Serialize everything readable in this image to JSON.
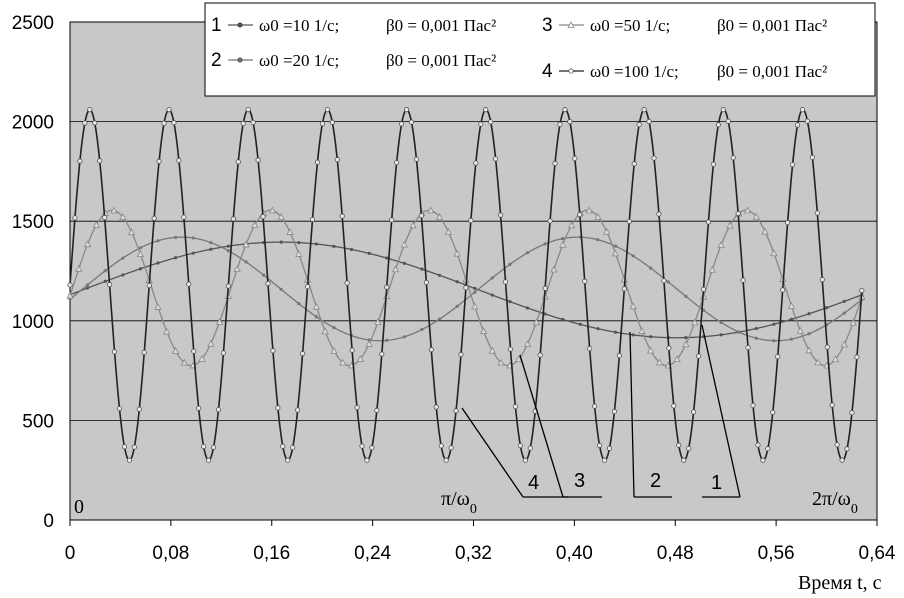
{
  "chart_data": {
    "type": "line",
    "xlabel": "Время  t, с",
    "xlim": [
      0,
      0.64
    ],
    "ylim": [
      0,
      2500
    ],
    "x_ticks": [
      "0",
      "0,08",
      "0,16",
      "0,24",
      "0,32",
      "0,40",
      "0,48",
      "0,56",
      "0,64"
    ],
    "y_ticks": [
      "0",
      "500",
      "1000",
      "1500",
      "2000",
      "2500"
    ],
    "grid": "horizontal",
    "legend_position": "top-right",
    "series": [
      {
        "name": "1",
        "omega_label": "ω0 =10 1/с;",
        "beta_label": "β0 = 0,001 Пас²",
        "omega": 10,
        "amplitude": 240,
        "mean": 1155,
        "phase": -0.1,
        "marker": "dot",
        "color": "#555555"
      },
      {
        "name": "2",
        "omega_label": "ω0 =20 1/с;",
        "beta_label": "β0 = 0,001 Пас²",
        "omega": 20,
        "amplitude": 260,
        "mean": 1160,
        "phase": -0.2,
        "marker": "dot",
        "color": "#777777"
      },
      {
        "name": "3",
        "omega_label": "ω0 =50 1/с;",
        "beta_label": "β0 = 0,001 Пас²",
        "omega": 50,
        "amplitude": 390,
        "mean": 1165,
        "phase": -0.1,
        "marker": "triangle",
        "color": "#888888"
      },
      {
        "name": "4",
        "omega_label": "ω0 =100 1/с;",
        "beta_label": "β0 = 0,001 Пас²",
        "omega": 100,
        "amplitude": 880,
        "mean": 1180,
        "phase": 0,
        "marker": "circle",
        "color": "#222222"
      }
    ],
    "annotations": {
      "zero_label": "0",
      "pi_label": "π/ω0",
      "two_pi_label": "2π/ω0",
      "callouts": [
        "4",
        "3",
        "2",
        "1"
      ]
    }
  }
}
